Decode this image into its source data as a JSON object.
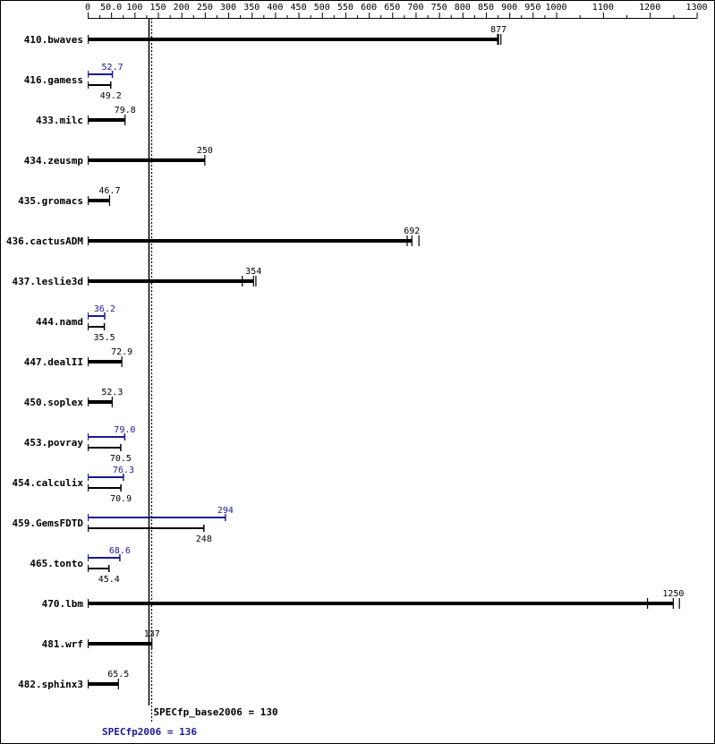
{
  "chart_data": {
    "type": "bar",
    "orientation": "horizontal",
    "x_ticks": [
      0,
      50.0,
      100,
      150,
      200,
      250,
      300,
      350,
      400,
      450,
      500,
      550,
      600,
      650,
      700,
      750,
      800,
      850,
      900,
      950,
      1000,
      1100,
      1200,
      1300
    ],
    "x_tick_labels": [
      "0",
      "50.0",
      "100",
      "150",
      "200",
      "250",
      "300",
      "350",
      "400",
      "450",
      "500",
      "550",
      "600",
      "650",
      "700",
      "750",
      "800",
      "850",
      "900",
      "950",
      "1000",
      "1100",
      "1200",
      "1300"
    ],
    "xlim": [
      0,
      1300
    ],
    "colors": {
      "base": "#000000",
      "peak": "#191996"
    },
    "summary": {
      "base_label": "SPECfp_base2006 = 130",
      "base_value": 130,
      "peak_label": "SPECfp2006 = 136",
      "peak_value": 136
    },
    "benchmarks": [
      {
        "name": "410.bwaves",
        "base": 877,
        "base_label": "877",
        "base_runs": [
          875,
          877,
          882
        ]
      },
      {
        "name": "416.gamess",
        "base": 49.2,
        "base_label": "49.2",
        "peak": 52.7,
        "peak_label": "52.7"
      },
      {
        "name": "433.milc",
        "base": 79.8,
        "base_label": "79.8"
      },
      {
        "name": "434.zeusmp",
        "base": 250,
        "base_label": "250"
      },
      {
        "name": "435.gromacs",
        "base": 46.7,
        "base_label": "46.7"
      },
      {
        "name": "436.cactusADM",
        "base": 692,
        "base_label": "692",
        "base_runs": [
          682,
          692,
          707
        ]
      },
      {
        "name": "437.leslie3d",
        "base": 354,
        "base_label": "354",
        "base_runs": [
          330,
          354,
          359
        ]
      },
      {
        "name": "444.namd",
        "base": 35.5,
        "base_label": "35.5",
        "peak": 36.2,
        "peak_label": "36.2"
      },
      {
        "name": "447.dealII",
        "base": 72.9,
        "base_label": "72.9"
      },
      {
        "name": "450.soplex",
        "base": 52.3,
        "base_label": "52.3"
      },
      {
        "name": "453.povray",
        "base": 70.5,
        "base_label": "70.5",
        "peak": 79.0,
        "peak_label": "79.0"
      },
      {
        "name": "454.calculix",
        "base": 70.9,
        "base_label": "70.9",
        "peak": 76.3,
        "peak_label": "76.3"
      },
      {
        "name": "459.GemsFDTD",
        "base": 248,
        "base_label": "248",
        "peak": 294,
        "peak_label": "294"
      },
      {
        "name": "465.tonto",
        "base": 45.4,
        "base_label": "45.4",
        "peak": 68.6,
        "peak_label": "68.6"
      },
      {
        "name": "470.lbm",
        "base": 1250,
        "base_label": "1250",
        "base_runs": [
          1195,
          1250,
          1263
        ]
      },
      {
        "name": "481.wrf",
        "base": 137,
        "base_label": "137"
      },
      {
        "name": "482.sphinx3",
        "base": 65.5,
        "base_label": "65.5"
      }
    ]
  }
}
